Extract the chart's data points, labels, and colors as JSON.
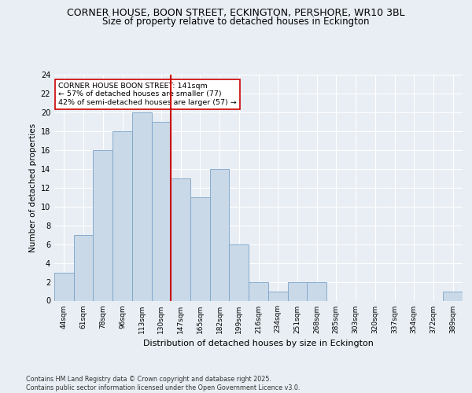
{
  "title_line1": "CORNER HOUSE, BOON STREET, ECKINGTON, PERSHORE, WR10 3BL",
  "title_line2": "Size of property relative to detached houses in Eckington",
  "xlabel": "Distribution of detached houses by size in Eckington",
  "ylabel": "Number of detached properties",
  "bin_labels": [
    "44sqm",
    "61sqm",
    "78sqm",
    "96sqm",
    "113sqm",
    "130sqm",
    "147sqm",
    "165sqm",
    "182sqm",
    "199sqm",
    "216sqm",
    "234sqm",
    "251sqm",
    "268sqm",
    "285sqm",
    "303sqm",
    "320sqm",
    "337sqm",
    "354sqm",
    "372sqm",
    "389sqm"
  ],
  "bar_heights": [
    3,
    7,
    16,
    18,
    20,
    19,
    13,
    11,
    14,
    6,
    2,
    1,
    2,
    2,
    0,
    0,
    0,
    0,
    0,
    0,
    1
  ],
  "bar_color": "#c9d9e8",
  "bar_edge_color": "#7ba3c8",
  "vline_x": 5.5,
  "vline_color": "#cc0000",
  "annotation_text": "CORNER HOUSE BOON STREET: 141sqm\n← 57% of detached houses are smaller (77)\n42% of semi-detached houses are larger (57) →",
  "annotation_box_color": "#ffffff",
  "annotation_box_edge": "#cc0000",
  "ylim": [
    0,
    24
  ],
  "yticks": [
    0,
    2,
    4,
    6,
    8,
    10,
    12,
    14,
    16,
    18,
    20,
    22,
    24
  ],
  "footer": "Contains HM Land Registry data © Crown copyright and database right 2025.\nContains public sector information licensed under the Open Government Licence v3.0.",
  "background_color": "#e8eef4",
  "plot_background": "#e8eef4"
}
